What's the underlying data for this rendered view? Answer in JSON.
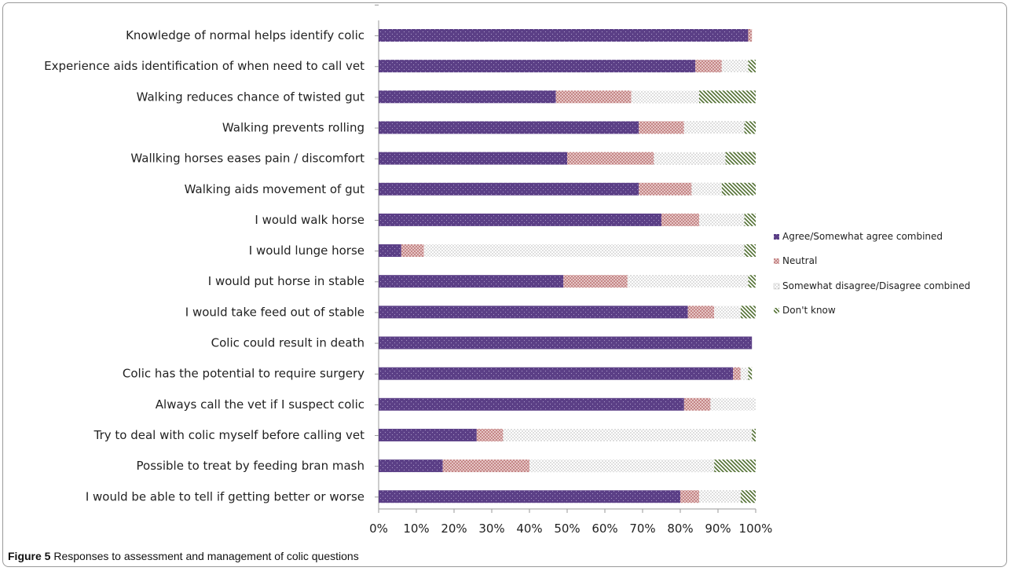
{
  "caption": {
    "label": "Figure 5",
    "text": " Responses to assessment and management of colic questions"
  },
  "chart_data": {
    "type": "bar",
    "orientation": "horizontal",
    "stacked": true,
    "percent_stacked": true,
    "categories": [
      "Knowledge of normal helps identify colic",
      "Experience aids identification of when need to call vet",
      "Walking reduces chance of twisted gut",
      "Walking prevents rolling",
      "Wallking horses eases pain / discomfort",
      "Walking aids movement of gut",
      "I would walk horse",
      "I would lunge horse",
      "I would put horse in stable",
      "I would take feed out of stable",
      "Colic could result in death",
      "Colic has the potential to require surgery",
      "Always call the vet if I suspect colic",
      "Try to deal with colic myself before calling vet",
      "Possible to treat by feeding bran mash",
      "I would be able to tell if getting better or worse"
    ],
    "series": [
      {
        "name": "Agree/Somewhat agree combined",
        "values": [
          98,
          84,
          47,
          69,
          50,
          69,
          75,
          6,
          49,
          82,
          99,
          94,
          81,
          26,
          17,
          80
        ]
      },
      {
        "name": "Neutral",
        "values": [
          1,
          7,
          20,
          12,
          23,
          14,
          10,
          6,
          17,
          7,
          0,
          2,
          7,
          7,
          23,
          5
        ]
      },
      {
        "name": "Somewhat disagree/Disagree combined",
        "values": [
          0,
          7,
          18,
          16,
          19,
          8,
          12,
          85,
          32,
          7,
          0,
          2,
          12,
          66,
          49,
          11
        ]
      },
      {
        "name": "Don't know",
        "values": [
          0,
          2,
          15,
          3,
          8,
          9,
          3,
          3,
          2,
          4,
          0,
          1,
          0,
          1,
          11,
          4
        ]
      }
    ],
    "xlim": [
      0,
      100
    ],
    "xticks": [
      "0%",
      "10%",
      "20%",
      "30%",
      "40%",
      "50%",
      "60%",
      "70%",
      "80%",
      "90%",
      "100%"
    ],
    "grid": false,
    "legend_position": "right"
  },
  "colors": {
    "agree": "#5b3f86",
    "neutral": "#c88c8c",
    "disagree": "#9a9a9a",
    "dontknow": "#5d7a3a",
    "axis": "#9a9a9a"
  }
}
